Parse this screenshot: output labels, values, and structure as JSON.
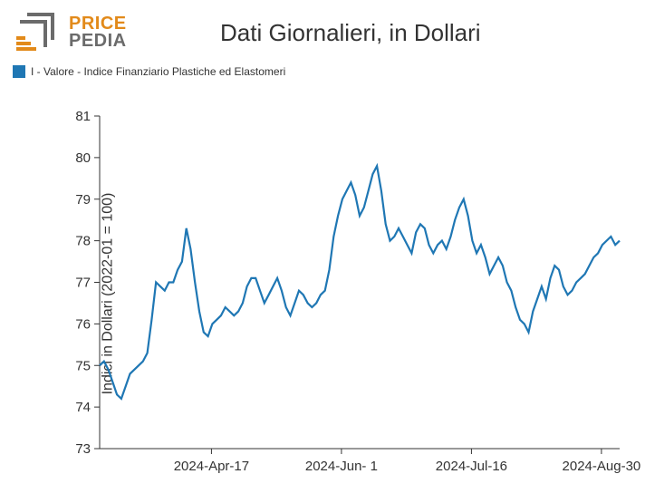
{
  "logo": {
    "line1": "PRICE",
    "line2": "PEDIA"
  },
  "title": "Dati Giornalieri, in Dollari",
  "legend": {
    "label": "I - Valore - Indice Finanziario Plastiche ed Elastomeri",
    "swatch_color": "#1f77b4"
  },
  "yAxis": {
    "label": "Indici in Dollari (2022-01 = 100)",
    "min": 73,
    "max": 81,
    "ticks": [
      73,
      74,
      75,
      76,
      77,
      78,
      79,
      80,
      81
    ],
    "label_fontsize": 16,
    "tick_fontsize": 15
  },
  "xAxis": {
    "ticks": [
      {
        "pos": 0.215,
        "label": "2024-Apr-17"
      },
      {
        "pos": 0.465,
        "label": "2024-Jun- 1"
      },
      {
        "pos": 0.715,
        "label": "2024-Jul-16"
      },
      {
        "pos": 0.965,
        "label": "2024-Aug-30"
      }
    ],
    "tick_fontsize": 15
  },
  "series": {
    "color": "#1f77b4",
    "line_width": 2.2,
    "type": "line",
    "data": [
      75.0,
      75.1,
      74.9,
      74.6,
      74.3,
      74.2,
      74.5,
      74.8,
      74.9,
      75.0,
      75.1,
      75.3,
      76.1,
      77.0,
      76.9,
      76.8,
      77.0,
      77.0,
      77.3,
      77.5,
      78.3,
      77.8,
      77.0,
      76.3,
      75.8,
      75.7,
      76.0,
      76.1,
      76.2,
      76.4,
      76.3,
      76.2,
      76.3,
      76.5,
      76.9,
      77.1,
      77.1,
      76.8,
      76.5,
      76.7,
      76.9,
      77.1,
      76.8,
      76.4,
      76.2,
      76.5,
      76.8,
      76.7,
      76.5,
      76.4,
      76.5,
      76.7,
      76.8,
      77.3,
      78.1,
      78.6,
      79.0,
      79.2,
      79.4,
      79.1,
      78.6,
      78.8,
      79.2,
      79.6,
      79.8,
      79.2,
      78.4,
      78.0,
      78.1,
      78.3,
      78.1,
      77.9,
      77.7,
      78.2,
      78.4,
      78.3,
      77.9,
      77.7,
      77.9,
      78.0,
      77.8,
      78.1,
      78.5,
      78.8,
      79.0,
      78.6,
      78.0,
      77.7,
      77.9,
      77.6,
      77.2,
      77.4,
      77.6,
      77.4,
      77.0,
      76.8,
      76.4,
      76.1,
      76.0,
      75.8,
      76.3,
      76.6,
      76.9,
      76.6,
      77.1,
      77.4,
      77.3,
      76.9,
      76.7,
      76.8,
      77.0,
      77.1,
      77.2,
      77.4,
      77.6,
      77.7,
      77.9,
      78.0,
      78.1,
      77.9,
      78.0
    ]
  },
  "colors": {
    "axis": "#333333",
    "text": "#333333",
    "background": "#ffffff",
    "logo_orange": "#e28a1a",
    "logo_gray": "#6b6b6b"
  }
}
